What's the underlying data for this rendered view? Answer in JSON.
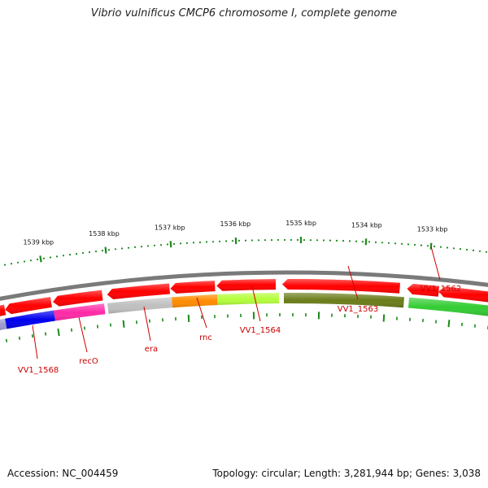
{
  "title": "Vibrio vulnificus CMCP6 chromosome I, complete genome",
  "footer": {
    "accession": "Accession: NC_004459",
    "summary": "Topology: circular; Length: 3,281,944 bp; Genes: 3,038"
  },
  "colors": {
    "backbone": "#7a7a7a",
    "tick": "#1a8a1a",
    "forward_gene": "#ff0000",
    "label": "#cc0000"
  },
  "ruler": {
    "labels": [
      "1533 kbp",
      "1534 kbp",
      "1535 kbp",
      "1536 kbp",
      "1537 kbp",
      "1538 kbp",
      "1539 kbp"
    ]
  },
  "genes": [
    {
      "name": "VV1_1562",
      "color": "#33cc33"
    },
    {
      "name": "VV1_1563",
      "color": "#6b7d1a"
    },
    {
      "name": "VV1_1564",
      "color": "#b4ff3c"
    },
    {
      "name": "rnc",
      "color": "#ff8c00"
    },
    {
      "name": "era",
      "color": "#c0c0c0"
    },
    {
      "name": "recO",
      "color": "#ff2aa8"
    },
    {
      "name": "VV1_1568",
      "color": "#0000ee"
    }
  ]
}
